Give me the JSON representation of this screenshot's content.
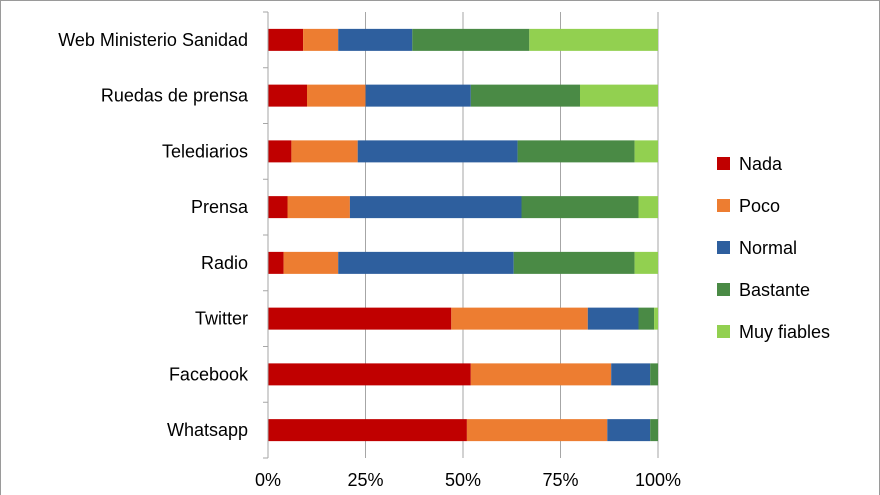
{
  "chart_data": {
    "type": "bar",
    "orientation": "horizontal",
    "stacked": true,
    "percent_stacked": true,
    "categories": [
      "Web Ministerio Sanidad",
      "Ruedas de prensa",
      "Telediarios",
      "Prensa",
      "Radio",
      "Twitter",
      "Facebook",
      "Whatsapp"
    ],
    "series": [
      {
        "name": "Nada",
        "color": "#c00000",
        "values": [
          9,
          10,
          6,
          5,
          4,
          47,
          52,
          51
        ]
      },
      {
        "name": "Poco",
        "color": "#ed7d31",
        "values": [
          9,
          15,
          17,
          16,
          14,
          35,
          36,
          36
        ]
      },
      {
        "name": "Normal",
        "color": "#2e5f9e",
        "values": [
          19,
          27,
          41,
          44,
          45,
          13,
          10,
          11
        ]
      },
      {
        "name": "Bastante",
        "color": "#4a8a45",
        "values": [
          30,
          28,
          30,
          30,
          31,
          4,
          2,
          2
        ]
      },
      {
        "name": "Muy fiables",
        "color": "#92d050",
        "values": [
          33,
          20,
          6,
          5,
          6,
          1,
          0,
          0
        ]
      }
    ],
    "xlim": [
      0,
      100
    ],
    "x_ticks": [
      "0%",
      "25%",
      "50%",
      "75%",
      "100%"
    ],
    "xlabel": "",
    "ylabel": "",
    "title": "",
    "grid": "vertical",
    "legend_position": "right"
  }
}
